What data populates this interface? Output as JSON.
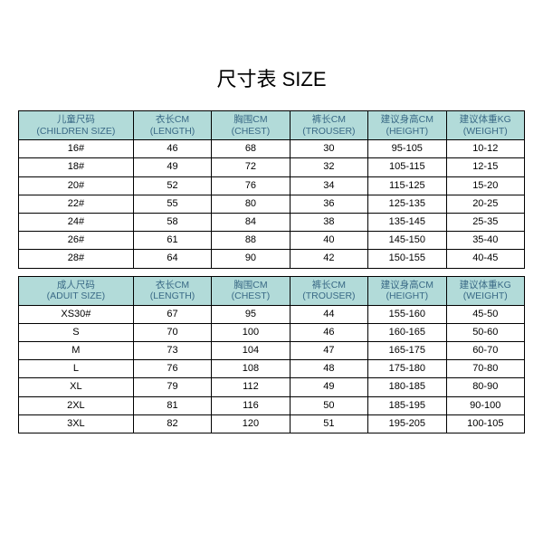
{
  "title": "尺寸表 SIZE",
  "headers_cn": [
    "儿童尺码",
    "衣长CM",
    "胸围CM",
    "裤长CM",
    "建议身高CM",
    "建议体重KG"
  ],
  "headers_en": [
    "(CHILDREN SIZE)",
    "(LENGTH)",
    "(CHEST)",
    "(TROUSER)",
    "(HEIGHT)",
    "(WEIGHT)"
  ],
  "rows_child": [
    [
      "16#",
      "46",
      "68",
      "30",
      "95-105",
      "10-12"
    ],
    [
      "18#",
      "49",
      "72",
      "32",
      "105-115",
      "12-15"
    ],
    [
      "20#",
      "52",
      "76",
      "34",
      "115-125",
      "15-20"
    ],
    [
      "22#",
      "55",
      "80",
      "36",
      "125-135",
      "20-25"
    ],
    [
      "24#",
      "58",
      "84",
      "38",
      "135-145",
      "25-35"
    ],
    [
      "26#",
      "61",
      "88",
      "40",
      "145-150",
      "35-40"
    ],
    [
      "28#",
      "64",
      "90",
      "42",
      "150-155",
      "40-45"
    ]
  ],
  "headers2_cn": [
    "成人尺码",
    "衣长CM",
    "胸围CM",
    "裤长CM",
    "建议身高CM",
    "建议体重KG"
  ],
  "headers2_en": [
    "(ADUIT SIZE)",
    "(LENGTH)",
    "(CHEST)",
    "(TROUSER)",
    "(HEIGHT)",
    "(WEIGHT)"
  ],
  "rows_adult": [
    [
      "XS30#",
      "67",
      "95",
      "44",
      "155-160",
      "45-50"
    ],
    [
      "S",
      "70",
      "100",
      "46",
      "160-165",
      "50-60"
    ],
    [
      "M",
      "73",
      "104",
      "47",
      "165-175",
      "60-70"
    ],
    [
      "L",
      "76",
      "108",
      "48",
      "175-180",
      "70-80"
    ],
    [
      "XL",
      "79",
      "112",
      "49",
      "180-185",
      "80-90"
    ],
    [
      "2XL",
      "81",
      "116",
      "50",
      "185-195",
      "90-100"
    ],
    [
      "3XL",
      "82",
      "120",
      "51",
      "195-205",
      "100-105"
    ]
  ],
  "header_bg": "#b2dbd9",
  "header_color": "#3a6a86",
  "border_color": "#000000",
  "bg_color": "#ffffff",
  "title_fontsize": 22,
  "cell_fontsize": 11,
  "header_fontsize": 10.5
}
